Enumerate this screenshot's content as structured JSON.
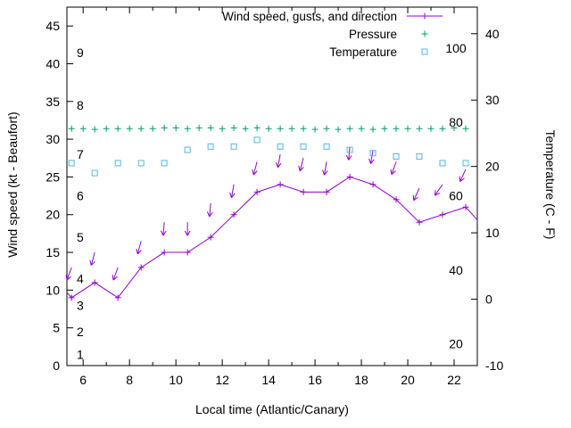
{
  "legend": {
    "items": [
      {
        "label": "Wind speed, gusts, and direction",
        "sample": "line-plus",
        "color": "#9400d3"
      },
      {
        "label": "Pressure",
        "sample": "plus",
        "color": "#009e73"
      },
      {
        "label": "Temperature",
        "sample": "square-open",
        "color": "#56b4e9"
      }
    ]
  },
  "chart_data": {
    "type": "line",
    "title": "",
    "xlabel": "Local time (Atlantic/Canary)",
    "ylabel_left": "Wind speed (kt - Beaufort)",
    "ylabel_right": "Temperature (C - F)",
    "x_range": [
      5.3,
      23.0
    ],
    "x_ticks": [
      6,
      8,
      10,
      12,
      14,
      16,
      18,
      20,
      22
    ],
    "x_minor_ticks": [
      7,
      9,
      11,
      13,
      15,
      17,
      19,
      21
    ],
    "y_left_range": [
      0,
      47.5
    ],
    "y_left_ticks": [
      0,
      5,
      10,
      15,
      20,
      25,
      30,
      35,
      40,
      45
    ],
    "y_right_range": [
      -10,
      44
    ],
    "y_right_ticks": [
      -10,
      0,
      10,
      20,
      30,
      40
    ],
    "grid": false,
    "legend_position": "top-right-inside",
    "beaufort_labels": {
      "text": [
        "1",
        "2",
        "3",
        "4",
        "5",
        "6",
        "7",
        "8",
        "9"
      ],
      "kt": [
        1.5,
        4.5,
        8,
        11.5,
        17,
        22.5,
        28,
        34.5,
        41.5
      ]
    },
    "fahrenheit_labels": {
      "text": [
        "20",
        "40",
        "60",
        "80",
        "100"
      ],
      "celsius": [
        -6.7,
        4.4,
        15.6,
        26.7,
        37.8
      ]
    },
    "series": [
      {
        "name": "Wind speed, gusts, and direction",
        "type": "line-markers",
        "marker": "plus",
        "color": "#9400d3",
        "axis": "left",
        "unit": "kt",
        "edge_points": true,
        "x": [
          5.3,
          5.5,
          6.5,
          7.5,
          8.5,
          9.5,
          10.5,
          11.5,
          12.5,
          13.5,
          14.5,
          15.5,
          16.5,
          17.5,
          18.5,
          19.5,
          20.5,
          21.5,
          22.5,
          23.0
        ],
        "y": [
          9.7,
          9,
          11,
          9,
          13,
          15,
          15,
          17,
          20,
          23,
          24,
          23,
          23,
          25,
          24,
          22,
          19,
          20,
          21,
          19.3
        ]
      },
      {
        "name": "Wind gusts and direction",
        "type": "vectors",
        "color": "#9400d3",
        "axis": "left",
        "unit": "kt",
        "points": [
          {
            "x": 5.5,
            "kt": 13,
            "dir_deg": 200
          },
          {
            "x": 6.5,
            "kt": 15,
            "dir_deg": 195
          },
          {
            "x": 7.5,
            "kt": 13,
            "dir_deg": 200
          },
          {
            "x": 8.5,
            "kt": 16.5,
            "dir_deg": 195
          },
          {
            "x": 9.5,
            "kt": 19,
            "dir_deg": 185
          },
          {
            "x": 10.5,
            "kt": 19,
            "dir_deg": 180
          },
          {
            "x": 11.5,
            "kt": 21.5,
            "dir_deg": 185
          },
          {
            "x": 12.5,
            "kt": 24,
            "dir_deg": 190
          },
          {
            "x": 13.5,
            "kt": 27,
            "dir_deg": 195
          },
          {
            "x": 14.5,
            "kt": 28,
            "dir_deg": 190
          },
          {
            "x": 15.5,
            "kt": 27.5,
            "dir_deg": 195
          },
          {
            "x": 16.5,
            "kt": 27,
            "dir_deg": 190
          },
          {
            "x": 17.5,
            "kt": 29,
            "dir_deg": 185
          },
          {
            "x": 18.5,
            "kt": 28.5,
            "dir_deg": 190
          },
          {
            "x": 19.5,
            "kt": 27,
            "dir_deg": 200
          },
          {
            "x": 20.5,
            "kt": 23.5,
            "dir_deg": 205
          },
          {
            "x": 21.5,
            "kt": 24,
            "dir_deg": 215
          },
          {
            "x": 22.5,
            "kt": 26,
            "dir_deg": 205
          }
        ]
      },
      {
        "name": "Pressure",
        "type": "points",
        "marker": "plus",
        "color": "#009e73",
        "axis": "left",
        "x": [
          5.5,
          6,
          6.5,
          7,
          7.5,
          8,
          8.5,
          9,
          9.5,
          10,
          10.5,
          11,
          11.5,
          12,
          12.5,
          13,
          13.5,
          14,
          14.5,
          15,
          15.5,
          16,
          16.5,
          17,
          17.5,
          18,
          18.5,
          19,
          19.5,
          20,
          20.5,
          21,
          21.5,
          22,
          22.5
        ],
        "y": [
          31.4,
          31.4,
          31.3,
          31.4,
          31.4,
          31.4,
          31.4,
          31.4,
          31.5,
          31.5,
          31.4,
          31.5,
          31.5,
          31.4,
          31.5,
          31.4,
          31.5,
          31.4,
          31.4,
          31.4,
          31.4,
          31.3,
          31.4,
          31.3,
          31.4,
          31.4,
          31.3,
          31.4,
          31.4,
          31.4,
          31.4,
          31.4,
          31.4,
          31.5,
          31.4
        ]
      },
      {
        "name": "Temperature",
        "type": "points",
        "marker": "square-open",
        "color": "#56b4e9",
        "axis": "right",
        "unit": "C",
        "x": [
          5.5,
          6.5,
          7.5,
          8.5,
          9.5,
          10.5,
          11.5,
          12.5,
          13.5,
          14.5,
          15.5,
          16.5,
          17.5,
          18.5,
          19.5,
          20.5,
          21.5,
          22.5
        ],
        "y": [
          20.5,
          19,
          20.5,
          20.5,
          20.5,
          22.5,
          23,
          23,
          24,
          23,
          23,
          23,
          22.5,
          22,
          21.5,
          21.5,
          20.5,
          20.5
        ]
      }
    ]
  }
}
